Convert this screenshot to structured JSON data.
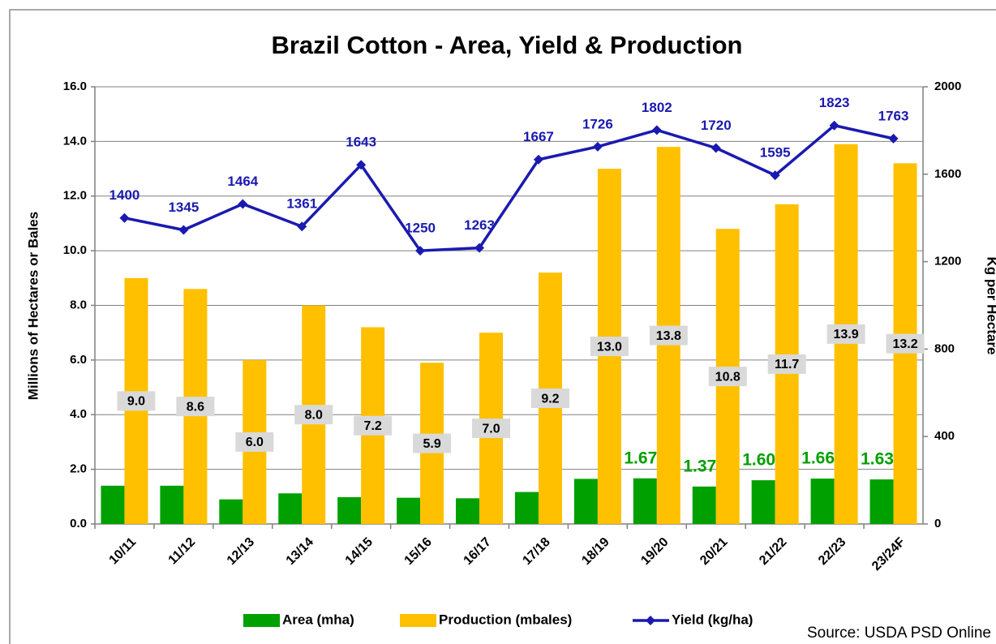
{
  "chart_data": {
    "type": "bar",
    "title": "Brazil Cotton - Area, Yield & Production",
    "y_label": "Millions of Hectares or Bales",
    "y2_label": "Kg per Hectare",
    "source": "Source: USDA PSD Online",
    "categories": [
      "10/11",
      "11/12",
      "12/13",
      "13/14",
      "14/15",
      "15/16",
      "16/17",
      "17/18",
      "18/19",
      "19/20",
      "20/21",
      "21/22",
      "22/23",
      "23/24F"
    ],
    "series": [
      {
        "name": "Area (mha)",
        "type": "bar",
        "color": "#00a000",
        "values": [
          1.4,
          1.4,
          0.9,
          1.12,
          0.98,
          0.96,
          0.94,
          1.17,
          1.65,
          1.67,
          1.37,
          1.6,
          1.66,
          1.63
        ],
        "value_labels": [
          null,
          null,
          null,
          null,
          null,
          null,
          null,
          null,
          null,
          "1.67",
          "1.37",
          "1.60",
          "1.66",
          "1.63"
        ]
      },
      {
        "name": "Production (mbales)",
        "type": "bar",
        "color": "#ffc000",
        "values": [
          9.0,
          8.6,
          6.0,
          8.0,
          7.2,
          5.9,
          7.0,
          9.2,
          13.0,
          13.8,
          10.8,
          11.7,
          13.9,
          13.2
        ],
        "value_labels": [
          "9.0",
          "8.6",
          "6.0",
          "8.0",
          "7.2",
          "5.9",
          "7.0",
          "9.2",
          "13.0",
          "13.8",
          "10.8",
          "11.7",
          "13.9",
          "13.2"
        ]
      },
      {
        "name": "Yield (kg/ha)",
        "type": "line",
        "color": "#1a1ab0",
        "axis": "y2",
        "values": [
          1400,
          1345,
          1464,
          1361,
          1643,
          1250,
          1263,
          1667,
          1726,
          1802,
          1720,
          1595,
          1823,
          1763
        ]
      }
    ],
    "ylim": [
      0,
      16
    ],
    "yticks": [
      {
        "value": 0,
        "label": "0.0"
      },
      {
        "value": 2,
        "label": "2.0"
      },
      {
        "value": 4,
        "label": "4.0"
      },
      {
        "value": 6,
        "label": "6.0"
      },
      {
        "value": 8,
        "label": "8.0"
      },
      {
        "value": 10,
        "label": "10.0"
      },
      {
        "value": 12,
        "label": "12.0"
      },
      {
        "value": 14,
        "label": "14.0"
      },
      {
        "value": 16,
        "label": "16.0"
      }
    ],
    "y2lim": [
      0,
      2000
    ],
    "y2ticks": [
      0,
      400,
      800,
      1200,
      1600,
      2000
    ],
    "grid": true,
    "legend": "bottom"
  }
}
